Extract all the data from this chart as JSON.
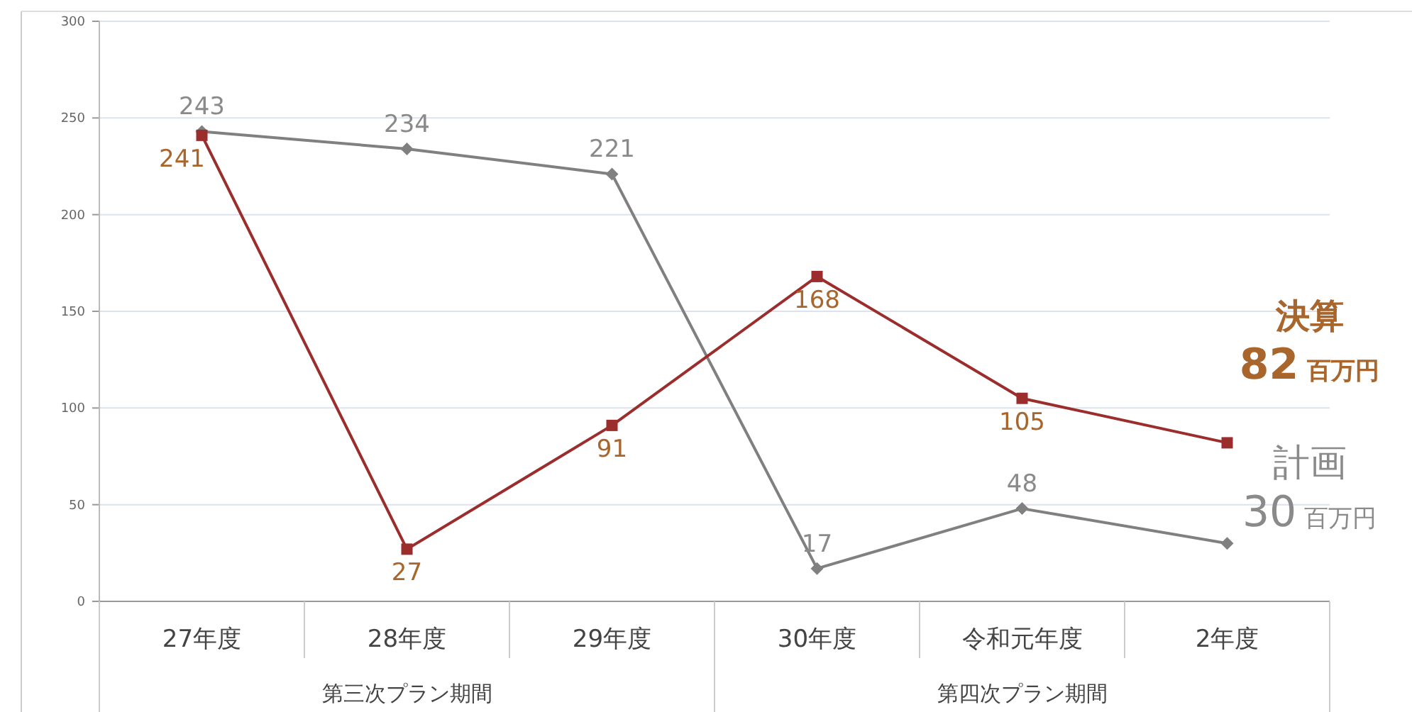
{
  "chart_data": {
    "type": "line",
    "categories": [
      "27年度",
      "28年度",
      "29年度",
      "30年度",
      "令和元年度",
      "2年度"
    ],
    "series": [
      {
        "name": "計画",
        "color": "#808080",
        "marker": "diamond",
        "values": [
          243,
          234,
          221,
          17,
          48,
          30
        ],
        "value_labels": [
          "243",
          "234",
          "221",
          "17",
          "48",
          "30 百万円"
        ]
      },
      {
        "name": "決算",
        "color": "#9b2d2d",
        "marker": "square",
        "values": [
          241,
          27,
          91,
          168,
          105,
          82
        ],
        "value_labels": [
          "241",
          "27",
          "91",
          "168",
          "105",
          "82 百万円"
        ]
      }
    ],
    "ylim": [
      0,
      300
    ],
    "yticks": [
      0,
      50,
      100,
      150,
      200,
      250,
      300
    ],
    "grid": "y",
    "annotations": [
      "第三次プラン期間",
      "第四次プラン期間"
    ]
  }
}
